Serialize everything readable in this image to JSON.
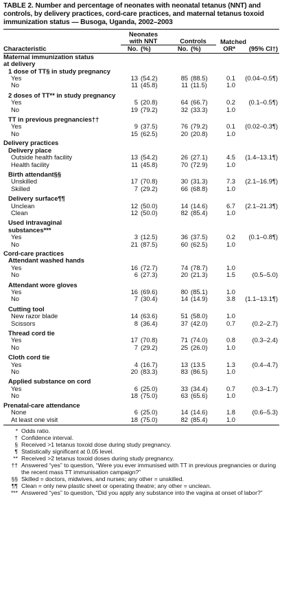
{
  "title": "TABLE 2. Number and percentage of neonates with neonatal tetanus (NNT) and controls, by delivery practices, cord-care practices, and maternal tetanus toxoid immunization status — Busoga, Uganda, 2002–2003",
  "header": {
    "characteristic": "Characteristic",
    "neonates": "Neonates",
    "with_nnt": "with NNT",
    "controls": "Controls",
    "matched": "Matched",
    "no": "No.",
    "pct": "(%)",
    "no2": "No.",
    "pct2": "(%)",
    "or": "OR*",
    "ci": "(95% CI†)"
  },
  "rows": [
    {
      "type": "group",
      "label": "Maternal immunization status"
    },
    {
      "type": "group",
      "label": "at delivery"
    },
    {
      "type": "sub",
      "label": "1 dose of TT§ in study pregnancy"
    },
    {
      "type": "item",
      "label": "Yes",
      "n": "13",
      "p": "(54.2)",
      "n2": "85",
      "p2": "(88.5)",
      "or": "0.1",
      "ci": "(0.04–0.5¶)"
    },
    {
      "type": "item",
      "label": "No",
      "n": "11",
      "p": "(45.8)",
      "n2": "11",
      "p2": "(11.5)",
      "or": "1.0",
      "ci": ""
    },
    {
      "type": "sub",
      "label": "2 doses of TT** in study pregnancy"
    },
    {
      "type": "item",
      "label": "Yes",
      "n": "5",
      "p": "(20.8)",
      "n2": "64",
      "p2": "(66.7)",
      "or": "0.2",
      "ci": "(0.1–0.5¶)"
    },
    {
      "type": "item",
      "label": "No",
      "n": "19",
      "p": "(79.2)",
      "n2": "32",
      "p2": "(33.3)",
      "or": "1.0",
      "ci": ""
    },
    {
      "type": "sub",
      "label": "TT in previous pregnancies††"
    },
    {
      "type": "item",
      "label": "Yes",
      "n": "9",
      "p": "(37.5)",
      "n2": "76",
      "p2": "(79.2)",
      "or": "0.1",
      "ci": "(0.02–0.3¶)"
    },
    {
      "type": "item",
      "label": "No",
      "n": "15",
      "p": "(62.5)",
      "n2": "20",
      "p2": "(20.8)",
      "or": "1.0",
      "ci": ""
    },
    {
      "type": "group",
      "label": "Delivery practices"
    },
    {
      "type": "sub",
      "label": "Delivery place"
    },
    {
      "type": "item",
      "label": "Outside health facility",
      "n": "13",
      "p": "(54.2)",
      "n2": "26",
      "p2": "(27.1)",
      "or": "4.5",
      "ci": "(1.4–13.1¶)"
    },
    {
      "type": "item",
      "label": "Health facility",
      "n": "11",
      "p": "(45.8)",
      "n2": "70",
      "p2": "(72.9)",
      "or": "1.0",
      "ci": ""
    },
    {
      "type": "sub",
      "label": "Birth attendant§§"
    },
    {
      "type": "item",
      "label": "Unskilled",
      "n": "17",
      "p": "(70.8)",
      "n2": "30",
      "p2": "(31.3)",
      "or": "7.3",
      "ci": "(2.1–16.9¶)"
    },
    {
      "type": "item",
      "label": "Skilled",
      "n": "7",
      "p": "(29.2)",
      "n2": "66",
      "p2": "(68.8)",
      "or": "1.0",
      "ci": ""
    },
    {
      "type": "sub",
      "label": "Delivery surface¶¶"
    },
    {
      "type": "item",
      "label": "Unclean",
      "n": "12",
      "p": "(50.0)",
      "n2": "14",
      "p2": "(14.6)",
      "or": "6.7",
      "ci": "(2.1–21.3¶)"
    },
    {
      "type": "item",
      "label": "Clean",
      "n": "12",
      "p": "(50.0)",
      "n2": "82",
      "p2": "(85.4)",
      "or": "1.0",
      "ci": ""
    },
    {
      "type": "sub",
      "label": "Used intravaginal"
    },
    {
      "type": "subcont",
      "label": "substances***"
    },
    {
      "type": "item",
      "label": "Yes",
      "n": "3",
      "p": "(12.5)",
      "n2": "36",
      "p2": "(37.5)",
      "or": "0.2",
      "ci": "(0.1–0.8¶)"
    },
    {
      "type": "item",
      "label": "No",
      "n": "21",
      "p": "(87.5)",
      "n2": "60",
      "p2": "(62.5)",
      "or": "1.0",
      "ci": ""
    },
    {
      "type": "group",
      "label": "Cord-care practices"
    },
    {
      "type": "sub",
      "label": "Attendant washed hands"
    },
    {
      "type": "item",
      "label": "Yes",
      "n": "16",
      "p": "(72.7)",
      "n2": "74",
      "p2": "(78.7)",
      "or": "1.0",
      "ci": ""
    },
    {
      "type": "item",
      "label": "No",
      "n": "6",
      "p": "(27.3)",
      "n2": "20",
      "p2": "(21.3)",
      "or": "1.5",
      "ci": "(0.5–5.0)"
    },
    {
      "type": "sub",
      "label": "Attendant wore gloves"
    },
    {
      "type": "item",
      "label": "Yes",
      "n": "16",
      "p": "(69.6)",
      "n2": "80",
      "p2": "(85.1)",
      "or": "1.0",
      "ci": ""
    },
    {
      "type": "item",
      "label": "No",
      "n": "7",
      "p": "(30.4)",
      "n2": "14",
      "p2": "(14.9)",
      "or": "3.8",
      "ci": "(1.1–13.1¶)"
    },
    {
      "type": "sub",
      "label": "Cutting tool"
    },
    {
      "type": "item",
      "label": "New razor blade",
      "n": "14",
      "p": "(63.6)",
      "n2": "51",
      "p2": "(58.0)",
      "or": "1.0",
      "ci": ""
    },
    {
      "type": "item",
      "label": "Scissors",
      "n": "8",
      "p": "(36.4)",
      "n2": "37",
      "p2": "(42.0)",
      "or": "0.7",
      "ci": "(0.2–2.7)"
    },
    {
      "type": "sub",
      "label": "Thread cord tie"
    },
    {
      "type": "item",
      "label": "Yes",
      "n": "17",
      "p": "(70.8)",
      "n2": "71",
      "p2": "(74.0)",
      "or": "0.8",
      "ci": "(0.3–2.4)"
    },
    {
      "type": "item",
      "label": "No",
      "n": "7",
      "p": "(29.2)",
      "n2": "25",
      "p2": "(26.0)",
      "or": "1.0",
      "ci": ""
    },
    {
      "type": "sub",
      "label": "Cloth cord tie"
    },
    {
      "type": "item",
      "label": "Yes",
      "n": "4",
      "p": "(16.7)",
      "n2": "13",
      "p2": "(13.5",
      "or": "1.3",
      "ci": "(0.4–4.7)"
    },
    {
      "type": "item",
      "label": "No",
      "n": "20",
      "p": "(83.3)",
      "n2": "83",
      "p2": "(86.5)",
      "or": "1.0",
      "ci": ""
    },
    {
      "type": "sub",
      "label": "Applied substance on cord"
    },
    {
      "type": "item",
      "label": "Yes",
      "n": "6",
      "p": "(25.0)",
      "n2": "33",
      "p2": "(34.4)",
      "or": "0.7",
      "ci": "(0.3–1.7)"
    },
    {
      "type": "item",
      "label": "No",
      "n": "18",
      "p": "(75.0)",
      "n2": "63",
      "p2": "(65.6)",
      "or": "1.0",
      "ci": ""
    },
    {
      "type": "group",
      "label": "Prenatal-care attendance"
    },
    {
      "type": "item",
      "label": "None",
      "n": "6",
      "p": "(25.0)",
      "n2": "14",
      "p2": "(14.6)",
      "or": "1.8",
      "ci": "(0.6–5.3)"
    },
    {
      "type": "item",
      "label": "At least one visit",
      "n": "18",
      "p": "(75.0)",
      "n2": "82",
      "p2": "(85.4)",
      "or": "1.0",
      "ci": ""
    }
  ],
  "footnotes": [
    {
      "mark": "*",
      "text": "Odds ratio."
    },
    {
      "mark": "†",
      "text": "Confidence interval."
    },
    {
      "mark": "§",
      "text": "Received >1 tetanus toxoid dose during study pregnancy."
    },
    {
      "mark": "¶",
      "text": "Statistically significant at 0.05 level."
    },
    {
      "mark": "**",
      "text": "Received >2 tetanus toxoid doses during study pregnancy."
    },
    {
      "mark": "††",
      "text": "Answered “yes” to question, “Were you ever immunised with TT in previous pregnancies or during the recent mass TT immunisation campaign?”"
    },
    {
      "mark": "§§",
      "text": "Skilled = doctors, midwives, and nurses; any other = unskilled."
    },
    {
      "mark": "¶¶",
      "text": "Clean = only new plastic sheet or operating theatre; any other = unclean."
    },
    {
      "mark": "***",
      "text": "Answered “yes” to question, “Did you apply any substance into the vagina at onset of labor?”"
    }
  ]
}
